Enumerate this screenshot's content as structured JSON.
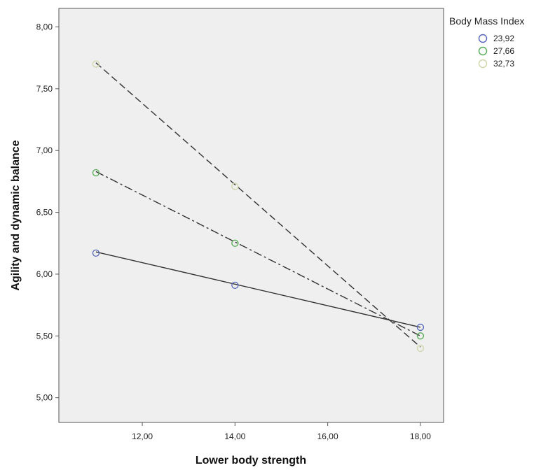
{
  "chart_data": {
    "type": "line",
    "xlabel": "Lower body strength",
    "ylabel": "Agility and dynamic balance",
    "xlim": [
      10.2,
      18.5
    ],
    "ylim": [
      4.8,
      8.15
    ],
    "xticks": [
      12,
      14,
      16,
      18
    ],
    "xtick_labels": [
      "12,00",
      "14,00",
      "16,00",
      "18,00"
    ],
    "yticks": [
      5.0,
      5.5,
      6.0,
      6.5,
      7.0,
      7.5,
      8.0
    ],
    "ytick_labels": [
      "5,00",
      "5,50",
      "6,00",
      "6,50",
      "7,00",
      "7,50",
      "8,00"
    ],
    "grid": false,
    "background": "#efefef",
    "legend": {
      "title": "Body Mass Index",
      "position": "top-right"
    },
    "series": [
      {
        "name": "23,92",
        "color": "#5566bb",
        "dash": "solid",
        "x": [
          11,
          14,
          18
        ],
        "y": [
          6.17,
          5.91,
          5.57
        ],
        "fit": [
          [
            11,
            6.18
          ],
          [
            18,
            5.57
          ]
        ]
      },
      {
        "name": "27,66",
        "color": "#55aa55",
        "dash": "dashdot",
        "x": [
          11,
          14,
          18
        ],
        "y": [
          6.82,
          6.25,
          5.5
        ],
        "fit": [
          [
            11,
            6.83
          ],
          [
            18,
            5.5
          ]
        ]
      },
      {
        "name": "32,73",
        "color": "#cfd6a8",
        "dash": "dashed",
        "x": [
          11,
          14,
          18
        ],
        "y": [
          7.7,
          6.71,
          5.4
        ],
        "fit": [
          [
            11,
            7.71
          ],
          [
            18,
            5.41
          ]
        ]
      }
    ]
  }
}
